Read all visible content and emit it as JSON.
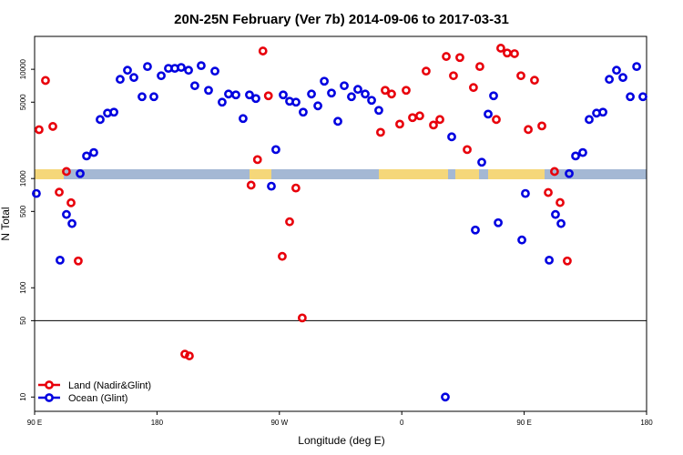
{
  "chart_data": {
    "type": "scatter",
    "title": "20N-25N February (Ver 7b)   2014-09-06 to 2017-03-31",
    "x_label": "Longitude (deg E)",
    "y_label": "N Total",
    "log_y": true,
    "legend": "bottom-left",
    "reference_line": 50,
    "xlim": [
      90,
      540
    ],
    "ylim": [
      7.4,
      20000
    ],
    "xticks": [
      {
        "value": 90,
        "label": "90 E"
      },
      180,
      {
        "value": 270,
        "label": "90 W"
      },
      {
        "value": 360,
        "label": "0"
      },
      {
        "value": 450,
        "label": "90 E"
      },
      {
        "value": 540,
        "label": "180"
      }
    ],
    "yticks": [
      10,
      50,
      100,
      500,
      1000,
      5000,
      10000
    ],
    "series": [
      {
        "name": "Land (Nadir&Glint)",
        "color": "#e8000b",
        "x": [
          93.3,
          98.0,
          103.4,
          108.1,
          113.4,
          116.8,
          122.1,
          249.2,
          253.9,
          257.9,
          261.9,
          272.1,
          277.5,
          282.1,
          286.8,
          344.4,
          347.8,
          352.5,
          358.5,
          363.2,
          367.9,
          373.2,
          377.9,
          383.3,
          388.0,
          392.7,
          398.0,
          402.7,
          408.1,
          412.7,
          417.4,
          429.5,
          432.8,
          437.5,
          442.9,
          447.6,
          453.0,
          457.6,
          463.0,
          467.7,
          472.3,
          476.4,
          481.7,
          200.5,
          203.8
        ],
        "values": [
          2800,
          7900,
          3000,
          750,
          1160,
          600,
          176,
          870,
          1490,
          14700,
          5720,
          194,
          402,
          819,
          53,
          2650,
          6420,
          5940,
          3150,
          6420,
          3610,
          3750,
          9620,
          3090,
          3470,
          13100,
          8730,
          12800,
          1840,
          6810,
          10600,
          3470,
          15600,
          14100,
          13900,
          8730,
          2810,
          7940,
          3030,
          745,
          1160,
          603,
          176,
          24.7,
          23.8
        ]
      },
      {
        "name": "Ocean (Glint)",
        "color": "#0000e0",
        "x": [
          91.3,
          108.7,
          113.4,
          117.5,
          123.5,
          128.2,
          133.5,
          138.2,
          143.6,
          148.3,
          152.9,
          158.3,
          163.0,
          169.0,
          173.0,
          177.7,
          183.1,
          188.4,
          193.1,
          197.8,
          203.2,
          207.8,
          212.5,
          217.9,
          222.6,
          227.9,
          232.6,
          238.0,
          243.3,
          248.0,
          252.7,
          264.1,
          267.4,
          272.8,
          277.5,
          282.2,
          287.5,
          293.6,
          298.3,
          303.0,
          308.3,
          313.0,
          317.7,
          323.0,
          327.7,
          333.1,
          337.8,
          343.1,
          392.0,
          396.7,
          414.1,
          418.8,
          423.5,
          427.5,
          430.9,
          448.3,
          450.9,
          468.4,
          473.0,
          477.1,
          483.1,
          487.8,
          493.1,
          497.8,
          503.2,
          507.9,
          512.6,
          517.9,
          522.6,
          528.0,
          532.7,
          537.3
        ],
        "values": [
          730,
          179,
          469,
          387,
          1110,
          1610,
          1730,
          3470,
          3970,
          4050,
          8090,
          9800,
          8410,
          5610,
          10600,
          5610,
          8730,
          10200,
          10200,
          10400,
          9800,
          7070,
          10800,
          6420,
          9620,
          5000,
          5940,
          5830,
          3540,
          5830,
          5400,
          851,
          1840,
          5830,
          5100,
          5000,
          4050,
          5940,
          4630,
          7780,
          6060,
          3340,
          7070,
          5610,
          6550,
          5940,
          5200,
          4210,
          10,
          2410,
          338,
          1410,
          3890,
          5720,
          394,
          274,
          730,
          179,
          469,
          387,
          1110,
          1610,
          1730,
          3470,
          3970,
          4050,
          8090,
          9800,
          8410,
          5610,
          10600,
          5610
        ]
      }
    ]
  }
}
